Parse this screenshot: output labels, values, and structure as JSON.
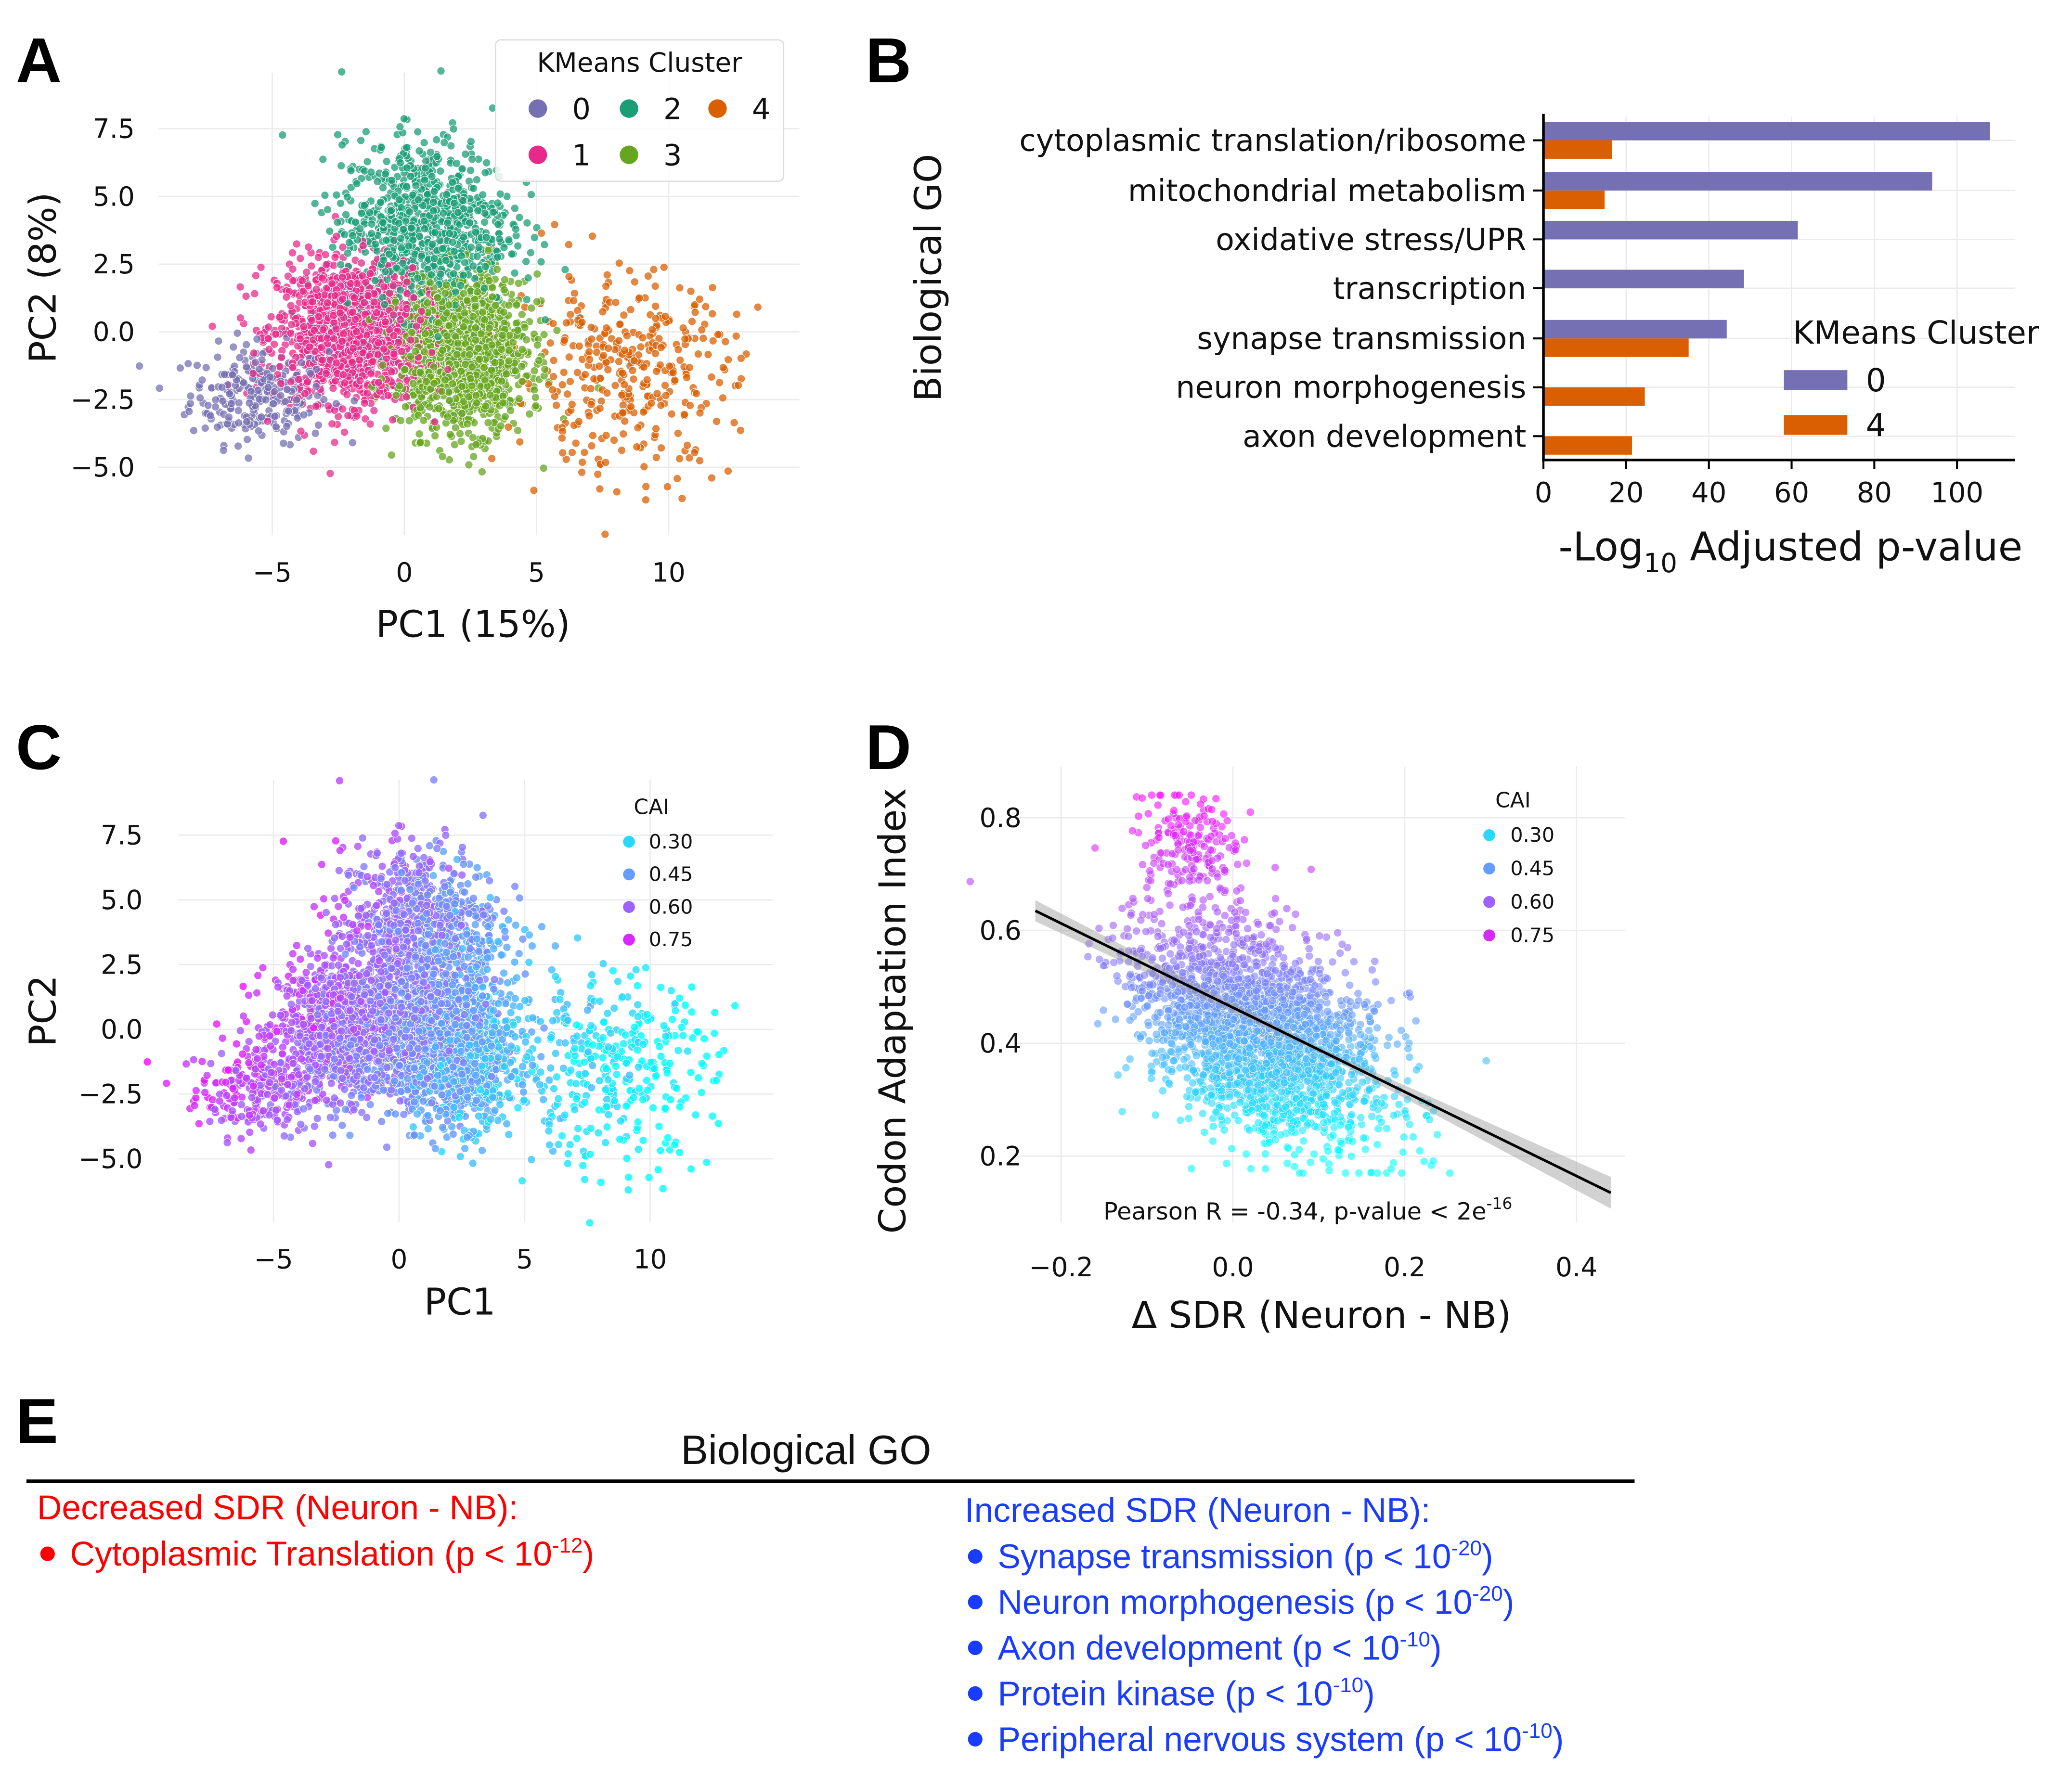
{
  "panel_letters": {
    "A": "A",
    "B": "B",
    "C": "C",
    "D": "D",
    "E": "E"
  },
  "chart_data": [
    {
      "panel": "A",
      "type": "scatter",
      "xlabel": "PC1 (15%)",
      "ylabel": "PC2 (8%)",
      "xlim": [
        -8.5,
        14
      ],
      "ylim": [
        -6.8,
        9
      ],
      "xticks": [
        -5,
        0,
        5,
        10
      ],
      "xtick_labels": [
        "−5",
        "0",
        "5",
        "10"
      ],
      "yticks": [
        -5,
        -2.5,
        0,
        2.5,
        5,
        7.5
      ],
      "ytick_labels": [
        "−5.0",
        "−2.5",
        "0.0",
        "2.5",
        "5.0",
        "7.5"
      ],
      "grid": true,
      "legend": {
        "title": "KMeans Cluster",
        "placement": "top-right"
      },
      "series": [
        {
          "name": "0",
          "color": "#7570b3",
          "center": [
            -5.5,
            -2.3
          ],
          "spread": [
            1.3,
            0.9
          ],
          "n": 260
        },
        {
          "name": "1",
          "color": "#e7298a",
          "center": [
            -2.0,
            0.0
          ],
          "spread": [
            1.4,
            1.3
          ],
          "n": 1400
        },
        {
          "name": "2",
          "color": "#1b9e77",
          "center": [
            0.8,
            3.9
          ],
          "spread": [
            1.6,
            1.6
          ],
          "n": 900
        },
        {
          "name": "3",
          "color": "#66a61e",
          "center": [
            2.2,
            -0.8
          ],
          "spread": [
            1.2,
            1.4
          ],
          "n": 1400
        },
        {
          "name": "4",
          "color": "#d95f02",
          "center": [
            8.3,
            -1.5
          ],
          "spread": [
            2.1,
            1.8
          ],
          "n": 360
        }
      ]
    },
    {
      "panel": "B",
      "type": "bar",
      "orientation": "horizontal",
      "ylabel": "Biological GO",
      "xlabel_main": "-Log",
      "xlabel_sub": "10",
      "xlabel_rest": " Adjusted p-value",
      "xlim": [
        0,
        114
      ],
      "xticks": [
        0,
        20,
        40,
        60,
        80,
        100
      ],
      "xtick_labels": [
        "0",
        "20",
        "40",
        "60",
        "80",
        "100"
      ],
      "grid": true,
      "categories": [
        "cytoplasmic translation/ribosome",
        "mitochondrial metabolism",
        "oxidative stress/UPR",
        "transcription",
        "synapse transmission",
        "neuron morphogenesis",
        "axon development"
      ],
      "legend": {
        "title": "KMeans Cluster",
        "placement": "bottom-right"
      },
      "series": [
        {
          "name": "0",
          "color": "#7570b3",
          "values": [
            108,
            94,
            61.5,
            48.5,
            44.3,
            null,
            null
          ]
        },
        {
          "name": "4",
          "color": "#d95f02",
          "values": [
            16.6,
            14.8,
            null,
            null,
            35.1,
            24.5,
            21.4
          ]
        }
      ]
    },
    {
      "panel": "C",
      "type": "scatter",
      "xlabel": "PC1",
      "ylabel": "PC2",
      "xticks": [
        -5,
        0,
        5,
        10
      ],
      "xtick_labels": [
        "−5",
        "0",
        "5",
        "10"
      ],
      "yticks": [
        -5,
        -2.5,
        0,
        2.5,
        5,
        7.5
      ],
      "ytick_labels": [
        "−5.0",
        "−2.5",
        "0.0",
        "2.5",
        "5.0",
        "7.5"
      ],
      "grid": true,
      "colorby": "CAI",
      "legend": {
        "title": "CAI",
        "placement": "top-right",
        "entries": [
          "0.30",
          "0.45",
          "0.60",
          "0.75"
        ],
        "values": [
          0.3,
          0.45,
          0.6,
          0.75
        ]
      },
      "colormap": {
        "low": "#00ffff",
        "high": "#ff00ff",
        "range": [
          0.2,
          0.85
        ]
      }
    },
    {
      "panel": "D",
      "type": "scatter",
      "xlabel": "Δ SDR (Neuron - NB)",
      "ylabel": "Codon Adaptation Index",
      "xlim": [
        -0.25,
        0.45
      ],
      "ylim": [
        0.14,
        0.86
      ],
      "xticks": [
        -0.2,
        0.0,
        0.2,
        0.4
      ],
      "xtick_labels": [
        "−0.2",
        "0.0",
        "0.2",
        "0.4"
      ],
      "yticks": [
        0.2,
        0.4,
        0.6,
        0.8
      ],
      "ytick_labels": [
        "0.2",
        "0.4",
        "0.6",
        "0.8"
      ],
      "grid": true,
      "colorby": "CAI",
      "legend": {
        "title": "CAI",
        "placement": "top-right",
        "entries": [
          "0.30",
          "0.45",
          "0.60",
          "0.75"
        ],
        "values": [
          0.3,
          0.45,
          0.6,
          0.75
        ]
      },
      "points": {
        "n": 2600,
        "x_center": 0.03,
        "x_spread": 0.07
      },
      "regression": {
        "x": [
          -0.23,
          0.44
        ],
        "y": [
          0.635,
          0.135
        ],
        "color": "#000000"
      },
      "annotation_main": "Pearson R = -0.34, p-value < 2e",
      "annotation_sup": "-16"
    }
  ],
  "panel_e": {
    "title": "Biological GO",
    "decreased": {
      "heading": "Decreased SDR (Neuron - NB):",
      "color": "#ff0000",
      "items": [
        {
          "label": "Cytoplasmic Translation (p < 10",
          "exp": "-12",
          "close": ")"
        }
      ]
    },
    "increased": {
      "heading": "Increased SDR (Neuron - NB):",
      "color": "#1a3cff",
      "items": [
        {
          "label": "Synapse transmission (p < 10",
          "exp": "-20",
          "close": ")"
        },
        {
          "label": "Neuron morphogenesis (p < 10",
          "exp": "-20",
          "close": ")"
        },
        {
          "label": "Axon development (p < 10",
          "exp": "-10",
          "close": ")"
        },
        {
          "label": "Protein kinase (p < 10",
          "exp": "-10",
          "close": ")"
        },
        {
          "label": "Peripheral nervous system (p < 10",
          "exp": "-10",
          "close": ")"
        }
      ]
    }
  }
}
